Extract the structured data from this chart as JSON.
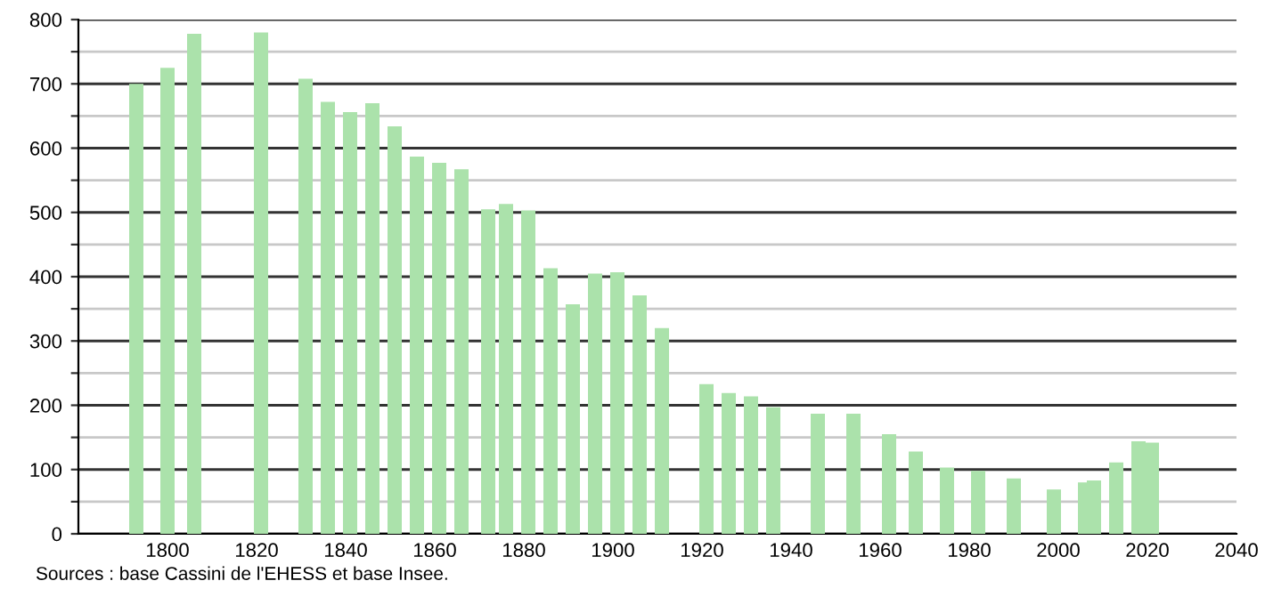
{
  "chart_data": {
    "type": "bar",
    "x": [
      1793,
      1800,
      1806,
      1821,
      1831,
      1836,
      1841,
      1846,
      1851,
      1856,
      1861,
      1866,
      1872,
      1876,
      1881,
      1886,
      1891,
      1896,
      1901,
      1906,
      1911,
      1921,
      1926,
      1931,
      1936,
      1946,
      1954,
      1962,
      1968,
      1975,
      1982,
      1990,
      1999,
      2006,
      2008,
      2013,
      2018,
      2021
    ],
    "values": [
      700,
      725,
      778,
      780,
      708,
      672,
      656,
      670,
      634,
      587,
      577,
      567,
      505,
      513,
      503,
      413,
      357,
      405,
      407,
      371,
      320,
      233,
      219,
      214,
      197,
      187,
      187,
      155,
      128,
      103,
      98,
      86,
      69,
      80,
      83,
      111,
      144,
      142
    ],
    "color": "#abe2ab",
    "xlim": [
      1780,
      2040
    ],
    "xticks": [
      1800,
      1820,
      1840,
      1860,
      1880,
      1900,
      1920,
      1940,
      1960,
      1980,
      2000,
      2020,
      2040
    ],
    "ylim": [
      0,
      800
    ],
    "yticks": [
      0,
      {
        "value": 50,
        "label": null
      },
      100,
      {
        "value": 150,
        "label": null
      },
      200,
      {
        "value": 250,
        "label": null
      },
      300,
      {
        "value": 350,
        "label": null
      },
      400,
      {
        "value": 450,
        "label": null
      },
      500,
      {
        "value": 550,
        "label": null
      },
      600,
      {
        "value": 650,
        "label": null
      },
      700,
      {
        "value": 750,
        "label": null
      },
      800
    ],
    "grid": "y",
    "annotations": [
      "Sources : base Cassini de l'EHESS et base Insee."
    ]
  }
}
